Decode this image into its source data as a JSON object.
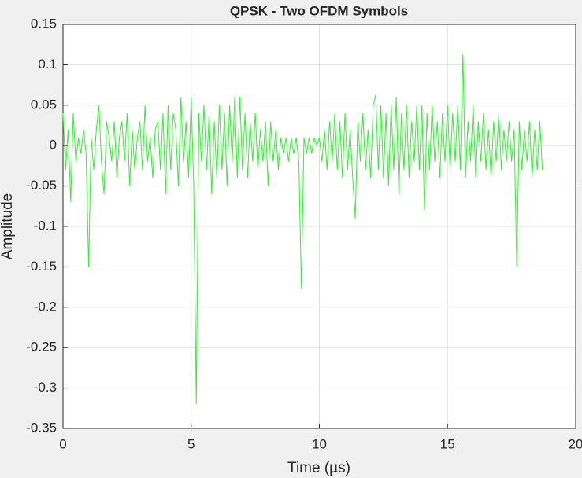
{
  "chart_data": {
    "type": "line",
    "title": "QPSK - Two OFDM Symbols",
    "x_label": "Time (µs)",
    "y_label": "Amplitude",
    "color": "#33ee33",
    "grid": true,
    "xlim": [
      0,
      20
    ],
    "xticks": [
      0,
      5,
      10,
      15,
      20
    ],
    "ylim": [
      -0.35,
      0.15
    ],
    "yticks": [
      0.15,
      0.1,
      0.05,
      0,
      -0.05,
      -0.1,
      -0.15,
      -0.2,
      -0.25,
      -0.3,
      -0.35
    ],
    "x": [
      0,
      0.1,
      0.2,
      0.3,
      0.4,
      0.5,
      0.6,
      0.7,
      0.8,
      0.9,
      1,
      1.1,
      1.2,
      1.3,
      1.4,
      1.5,
      1.6,
      1.7,
      1.8,
      1.9,
      2,
      2.1,
      2.2,
      2.3,
      2.4,
      2.5,
      2.6,
      2.7,
      2.8,
      2.9,
      3,
      3.1,
      3.2,
      3.3,
      3.4,
      3.5,
      3.6,
      3.7,
      3.8,
      3.9,
      4,
      4.1,
      4.2,
      4.3,
      4.4,
      4.5,
      4.6,
      4.7,
      4.8,
      4.9,
      5,
      5.1,
      5.2,
      5.3,
      5.4,
      5.5,
      5.6,
      5.7,
      5.8,
      5.9,
      6,
      6.1,
      6.2,
      6.3,
      6.4,
      6.5,
      6.6,
      6.7,
      6.8,
      6.9,
      7,
      7.1,
      7.2,
      7.3,
      7.4,
      7.5,
      7.6,
      7.7,
      7.8,
      7.9,
      8,
      8.1,
      8.2,
      8.3,
      8.4,
      8.5,
      8.6,
      8.7,
      8.8,
      8.9,
      9,
      9.1,
      9.2,
      9.3,
      9.4,
      9.5,
      9.6,
      9.7,
      9.8,
      9.9,
      10,
      10.1,
      10.2,
      10.3,
      10.4,
      10.5,
      10.6,
      10.7,
      10.8,
      10.9,
      11,
      11.1,
      11.2,
      11.3,
      11.4,
      11.5,
      11.6,
      11.7,
      11.8,
      11.9,
      12,
      12.1,
      12.2,
      12.3,
      12.4,
      12.5,
      12.6,
      12.7,
      12.8,
      12.9,
      13,
      13.1,
      13.2,
      13.3,
      13.4,
      13.5,
      13.6,
      13.7,
      13.8,
      13.9,
      14,
      14.1,
      14.2,
      14.3,
      14.4,
      14.5,
      14.6,
      14.7,
      14.8,
      14.9,
      15,
      15.1,
      15.2,
      15.3,
      15.4,
      15.5,
      15.6,
      15.7,
      15.8,
      15.9,
      16,
      16.1,
      16.2,
      16.3,
      16.4,
      16.5,
      16.6,
      16.7,
      16.8,
      16.9,
      17,
      17.1,
      17.2,
      17.3,
      17.4,
      17.5,
      17.6,
      17.7,
      17.8,
      17.9,
      18,
      18.1,
      18.2,
      18.3,
      18.4,
      18.5,
      18.6,
      18.7
    ],
    "values": [
      0.04,
      -0.03,
      0.02,
      -0.07,
      0.04,
      -0.02,
      0.01,
      -0.01,
      0.02,
      -0.01,
      -0.15,
      0.01,
      -0.03,
      0.02,
      0.05,
      -0.02,
      -0.06,
      0.03,
      0.01,
      -0.02,
      0.03,
      -0.04,
      0.01,
      0.03,
      -0.02,
      0.04,
      -0.05,
      0.02,
      -0.03,
      0.01,
      0.03,
      -0.03,
      0.05,
      -0.02,
      0.01,
      -0.04,
      0.02,
      0.03,
      -0.03,
      0.04,
      -0.06,
      0.05,
      -0.03,
      0.04,
      0.02,
      -0.05,
      0.06,
      -0.02,
      0.03,
      -0.04,
      0.06,
      -0.05,
      -0.32,
      0.04,
      -0.02,
      0.05,
      -0.03,
      0.04,
      -0.06,
      0.03,
      -0.04,
      0.05,
      -0.03,
      0.04,
      -0.05,
      0.05,
      -0.02,
      0.06,
      -0.04,
      0.06,
      -0.03,
      0.04,
      -0.04,
      0.03,
      -0.02,
      0.04,
      -0.03,
      0.02,
      -0.02,
      0.03,
      -0.05,
      0.03,
      -0.02,
      0.02,
      -0.03,
      0.01,
      -0.01,
      0.01,
      -0.02,
      0.01,
      -0.01,
      0.01,
      -0.02,
      -0.177,
      0.01,
      -0.01,
      0.01,
      -0.01,
      0.01,
      0,
      0.01,
      -0.02,
      0.02,
      -0.03,
      0.03,
      -0.02,
      0.04,
      -0.03,
      0.03,
      -0.04,
      0.04,
      -0.03,
      0.02,
      -0.04,
      -0.09,
      0.03,
      -0.02,
      0.04,
      -0.03,
      0.02,
      -0.04,
      0.05,
      0.063,
      -0.03,
      0.05,
      -0.04,
      0.04,
      -0.05,
      0.05,
      -0.03,
      0.06,
      -0.06,
      0.04,
      -0.03,
      0.05,
      -0.04,
      0.03,
      -0.02,
      0.05,
      -0.03,
      0.05,
      -0.08,
      0.04,
      -0.03,
      0.05,
      -0.02,
      0.03,
      -0.04,
      0.04,
      -0.02,
      0.05,
      -0.03,
      0.04,
      -0.02,
      0.05,
      -0.03,
      0.113,
      -0.04,
      0.03,
      -0.02,
      0.05,
      -0.04,
      0.03,
      -0.02,
      0.04,
      -0.03,
      0.02,
      -0.04,
      0.03,
      -0.02,
      0.04,
      -0.03,
      0.02,
      -0.02,
      0.03,
      -0.02,
      0.02,
      -0.15,
      0.03,
      -0.03,
      0.02,
      -0.02,
      0.03,
      -0.04,
      0.02,
      -0.03,
      0.03,
      -0.03
    ]
  }
}
